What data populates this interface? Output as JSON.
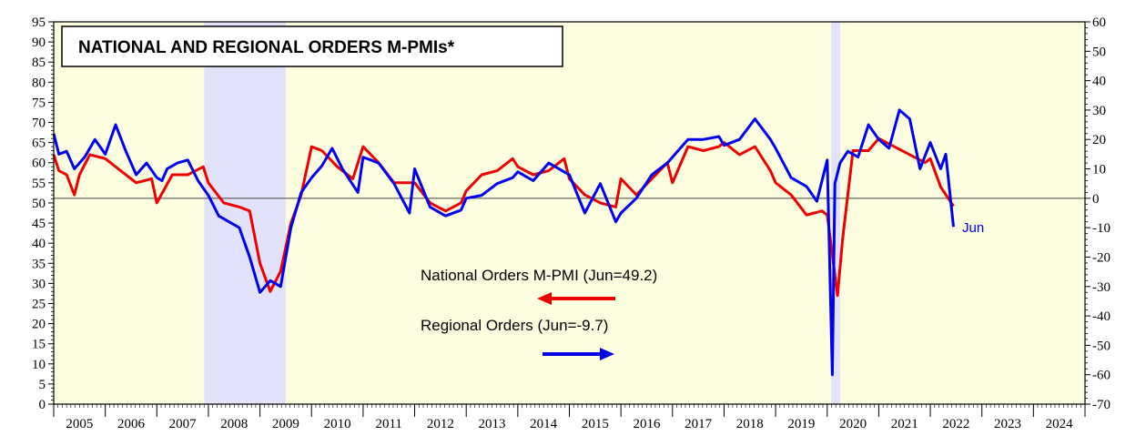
{
  "chart_data": {
    "type": "line",
    "title": "NATIONAL AND REGIONAL ORDERS M-PMIs*",
    "x_range": [
      2005.0,
      2025.0
    ],
    "left_axis": {
      "ylim": [
        0,
        95
      ],
      "ticks": [
        0,
        5,
        10,
        15,
        20,
        25,
        30,
        35,
        40,
        45,
        50,
        55,
        60,
        65,
        70,
        75,
        80,
        85,
        90,
        95
      ]
    },
    "right_axis": {
      "ylim": [
        -70,
        60
      ],
      "ticks": [
        -70,
        -60,
        -50,
        -40,
        -30,
        -20,
        -10,
        0,
        10,
        20,
        30,
        40,
        50,
        60
      ]
    },
    "x_labels": [
      "2005",
      "2006",
      "2007",
      "2008",
      "2009",
      "2010",
      "2011",
      "2012",
      "2013",
      "2014",
      "2015",
      "2016",
      "2017",
      "2018",
      "2019",
      "2020",
      "2021",
      "2022",
      "2023",
      "2024"
    ],
    "recessions": [
      [
        2007.92,
        2009.5
      ],
      [
        2020.08,
        2020.25
      ]
    ],
    "reference_line": {
      "axis": "right",
      "value": 0
    },
    "series": [
      {
        "name": "National Orders M-PMI (Jun=49.2)",
        "color": "#ee0000",
        "axis": "left",
        "x": [
          2005.0,
          2005.1,
          2005.25,
          2005.4,
          2005.5,
          2005.7,
          2006.0,
          2006.3,
          2006.6,
          2006.9,
          2007.0,
          2007.3,
          2007.6,
          2007.9,
          2008.0,
          2008.3,
          2008.6,
          2008.8,
          2009.0,
          2009.2,
          2009.4,
          2009.6,
          2009.8,
          2010.0,
          2010.2,
          2010.5,
          2010.8,
          2011.0,
          2011.3,
          2011.6,
          2011.9,
          2012.0,
          2012.3,
          2012.6,
          2012.9,
          2013.0,
          2013.3,
          2013.6,
          2013.9,
          2014.0,
          2014.3,
          2014.6,
          2014.9,
          2015.0,
          2015.3,
          2015.6,
          2015.9,
          2016.0,
          2016.3,
          2016.6,
          2016.9,
          2017.0,
          2017.3,
          2017.6,
          2017.9,
          2018.0,
          2018.3,
          2018.6,
          2018.9,
          2019.0,
          2019.3,
          2019.6,
          2019.9,
          2020.0,
          2020.1,
          2020.2,
          2020.3,
          2020.5,
          2020.8,
          2021.0,
          2021.3,
          2021.6,
          2021.9,
          2022.0,
          2022.2,
          2022.45
        ],
        "values": [
          62,
          58,
          57,
          52,
          57,
          62,
          61,
          58,
          55,
          56,
          50,
          57,
          57,
          59,
          55,
          50,
          49,
          48,
          35,
          28,
          33,
          45,
          52,
          64,
          63,
          59,
          56,
          64,
          60,
          55,
          55,
          55,
          50,
          48,
          50,
          53,
          57,
          58,
          61,
          59,
          57,
          58,
          61,
          56,
          52,
          50,
          49,
          56,
          52,
          56,
          60,
          55,
          64,
          63,
          64,
          65,
          62,
          64,
          58,
          55,
          52,
          47,
          48,
          47,
          37,
          27,
          41,
          63,
          63,
          66,
          64,
          62,
          60,
          61,
          54,
          49.2
        ]
      },
      {
        "name": "Regional Orders (Jun=-9.7)",
        "color": "#0000ee",
        "axis": "right",
        "x": [
          2005.0,
          2005.1,
          2005.25,
          2005.4,
          2005.6,
          2005.8,
          2006.0,
          2006.2,
          2006.4,
          2006.6,
          2006.8,
          2007.0,
          2007.1,
          2007.2,
          2007.4,
          2007.6,
          2007.8,
          2008.0,
          2008.2,
          2008.4,
          2008.6,
          2008.8,
          2009.0,
          2009.1,
          2009.2,
          2009.4,
          2009.6,
          2009.8,
          2010.0,
          2010.2,
          2010.4,
          2010.6,
          2010.9,
          2011.0,
          2011.3,
          2011.6,
          2011.9,
          2012.0,
          2012.3,
          2012.6,
          2012.9,
          2013.0,
          2013.3,
          2013.6,
          2013.9,
          2014.0,
          2014.3,
          2014.6,
          2014.9,
          2015.0,
          2015.3,
          2015.6,
          2015.9,
          2016.0,
          2016.3,
          2016.6,
          2016.9,
          2017.0,
          2017.3,
          2017.6,
          2017.9,
          2018.0,
          2018.3,
          2018.6,
          2018.9,
          2019.0,
          2019.3,
          2019.6,
          2019.8,
          2020.0,
          2020.1,
          2020.15,
          2020.25,
          2020.4,
          2020.6,
          2020.8,
          2021.0,
          2021.2,
          2021.4,
          2021.6,
          2021.8,
          2022.0,
          2022.2,
          2022.3,
          2022.45
        ],
        "values": [
          22,
          15,
          16,
          10,
          14,
          20,
          15,
          25,
          16,
          8,
          12,
          7,
          6,
          10,
          12,
          13,
          6,
          1,
          -6,
          -8,
          -10,
          -20,
          -32,
          -30,
          -28,
          -30,
          -10,
          2,
          7,
          11,
          17,
          10,
          2,
          14,
          12,
          5,
          -5,
          10,
          -3,
          -6,
          -4,
          0,
          1,
          5,
          7,
          9,
          6,
          12,
          9,
          8,
          -5,
          5,
          -8,
          -5,
          0,
          8,
          12,
          14,
          20,
          20,
          21,
          18,
          20,
          27,
          20,
          17,
          7,
          4,
          -1,
          13,
          -60,
          5,
          12,
          16,
          14,
          25,
          20,
          17,
          30,
          27,
          10,
          19,
          10,
          15,
          -9.7
        ]
      }
    ],
    "legend": [
      {
        "label": "National Orders M-PMI (Jun=49.2)",
        "arrow": "left",
        "color": "#ee0000"
      },
      {
        "label": "Regional Orders (Jun=-9.7)",
        "arrow": "right",
        "color": "#0000ee"
      }
    ],
    "annotation": "Jun"
  }
}
